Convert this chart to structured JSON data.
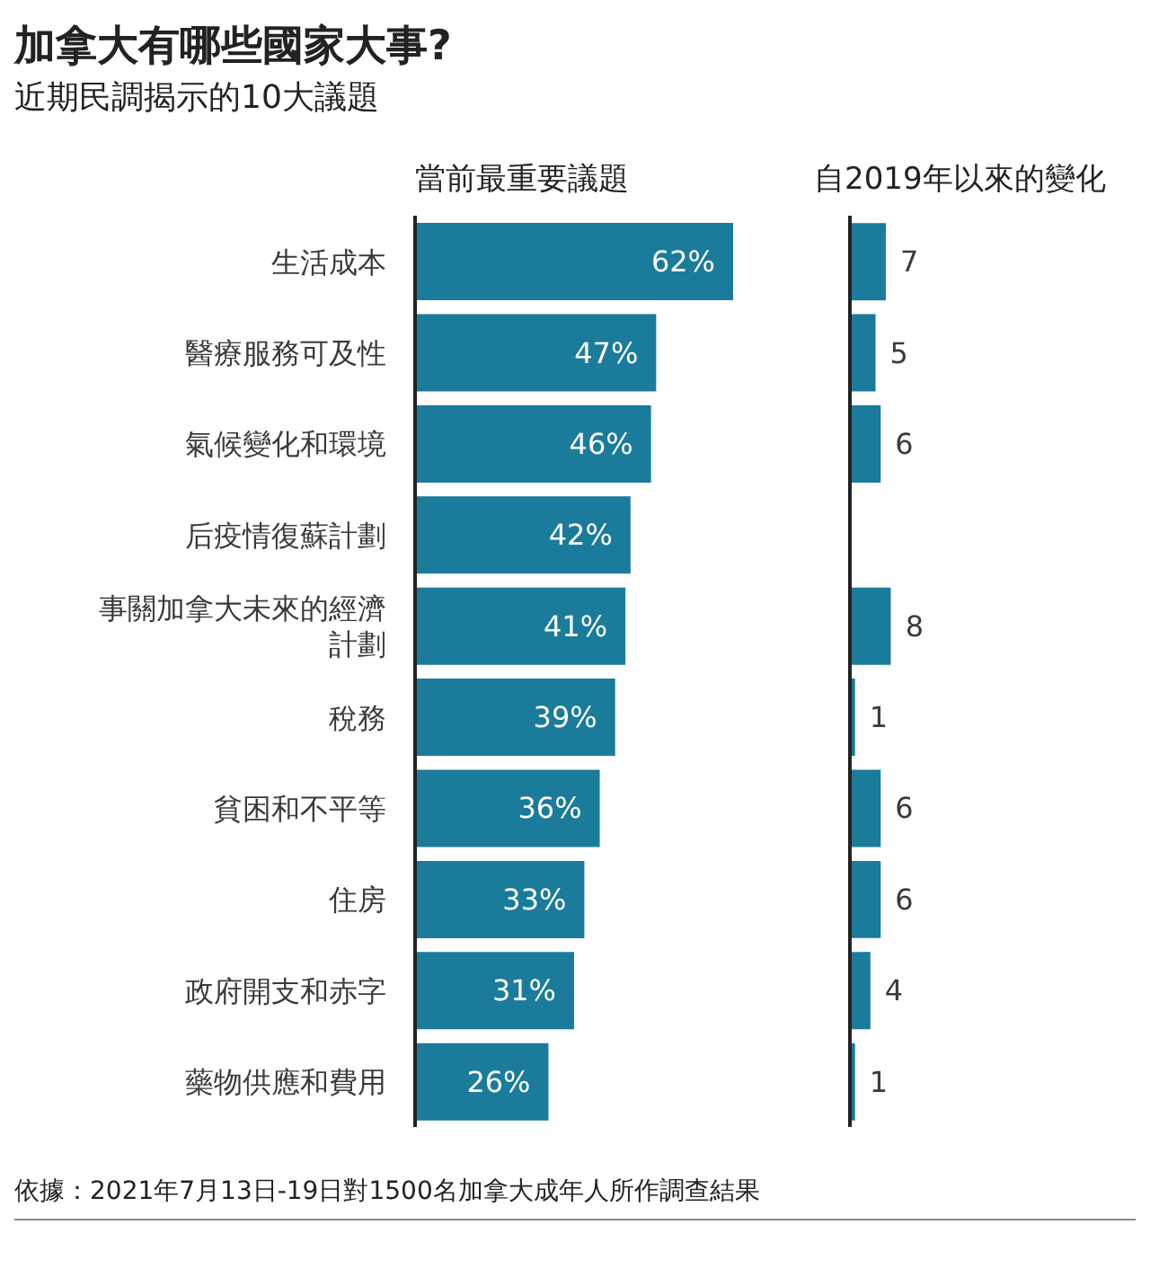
{
  "chart_data": [
    {
      "type": "bar",
      "orientation": "horizontal",
      "title": "加拿大有哪些國家大事?",
      "subtitle": "近期民調揭示的10大議題",
      "xlabel": "當前最重要議題",
      "categories": [
        "生活成本",
        "醫療服務可及性",
        "氣候變化和環境",
        "后疫情復蘇計劃",
        "事關加拿大未來的經濟計劃",
        "稅務",
        "貧困和不平等",
        "住房",
        "政府開支和赤字",
        "藥物供應和費用"
      ],
      "values": [
        62,
        47,
        46,
        42,
        41,
        39,
        36,
        33,
        31,
        26
      ],
      "color": "#1a7b9a",
      "value_labels": [
        "62%",
        "47%",
        "46%",
        "42%",
        "41%",
        "39%",
        "36%",
        "33%",
        "31%",
        "26%"
      ],
      "tick_labels": "y",
      "grid": false,
      "annotations": [
        "依據：2021年7月13日-19日對1500名加拿大成年人所作調查結果"
      ]
    },
    {
      "type": "bar",
      "orientation": "horizontal",
      "xlabel": "自2019年以來的變化",
      "categories": [
        "生活成本",
        "醫療服務可及性",
        "氣候變化和環境",
        "后疫情復蘇計劃",
        "事關加拿大未來的經濟計劃",
        "稅務",
        "貧困和不平等",
        "住房",
        "政府開支和赤字",
        "藥物供應和費用"
      ],
      "values": [
        7,
        5,
        6,
        null,
        8,
        1,
        6,
        6,
        4,
        1
      ],
      "color": "#1a7b9a",
      "data_labels": true,
      "tick_labels": false,
      "grid": false
    }
  ]
}
